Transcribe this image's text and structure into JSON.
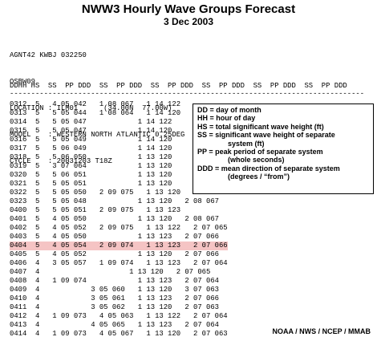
{
  "title": "NWW3 Hourly Wave Groups Forecast",
  "subtitle": "3 Dec 2003",
  "header_lines": [
    "AGNT42 KWBJ 032250",
    "OSBW09",
    "LOCATION : ILM01      (34.00N  77.00W)",
    "MODEL    : WESTERN NORTH ATLANTIC 0.25DEG",
    "CYCLE    : 20031203 T18Z"
  ],
  "column_header": "DDHH HS  SS  PP DDD  SS  PP DDD  SS  PP DDD  SS  PP DDD  SS  PP DDD  SS  PP DDD",
  "rule": "-----------------------------------------------------------------------------------",
  "rows": [
    "0312  5   4 05 042   1 08 067   1 14 122",
    "0313  5   5 05 044   1 08 064   1 14 120",
    "0314  5   5 05 047            1 14 122",
    "0315  5   5 05 047            1 14 120",
    "0316  5   5 05 049            1 14 120",
    "0317  5   5 06 049            1 14 120",
    "0318  5   5 06 050            1 13 120",
    "0319  5   3 07 064            1 13 120",
    "0320  5   5 06 051            1 13 120",
    "0321  5   5 05 051            1 13 120",
    "0322  5   5 05 050   2 09 075   1 13 120",
    "0323  5   5 05 048            1 13 120   2 08 067",
    "0400  5   5 05 051   2 09 075   1 13 123",
    "0401  5   4 05 050            1 13 120   2 08 067",
    "0402  5   4 05 052   2 09 075   1 13 122   2 07 065",
    "0403  5   4 05 050            1 13 123   2 07 066",
    "0404  5   4 05 054   2 09 074   1 13 123   2 07 066",
    "0405  5   4 05 052            1 13 120   2 07 066",
    "0406  4   3 05 057   1 09 074   1 13 123   2 07 064",
    "0407  4                     1 13 120   2 07 065",
    "0408  4   1 09 074            1 13 123   2 07 064",
    "0409  4            3 05 060   1 13 120   3 07 063",
    "0410  4            3 05 061   1 13 123   2 07 066",
    "0411  4            3 05 062   1 13 120   2 07 063",
    "0412  4   1 09 073   4 05 063   1 13 122   2 07 064",
    "0413  4            4 05 065   1 13 123   2 07 064",
    "0414  4   1 09 073   4 05 067   1 13 120   2 07 063"
  ],
  "highlight_row_index": 16,
  "highlight_color": "#f5c4c4",
  "legend": [
    {
      "line": "DD = day of month",
      "cont": ""
    },
    {
      "line": "HH = hour of day",
      "cont": ""
    },
    {
      "line": "HS = total significant wave height (ft)",
      "cont": ""
    },
    {
      "line": "SS = significant wave height of separate",
      "cont": "system (ft)"
    },
    {
      "line": "PP = peak period of separate system",
      "cont": "(whole seconds)"
    },
    {
      "line": "DDD = mean direction of separate system",
      "cont": "(degrees / “from”)"
    }
  ],
  "credit": "NOAA / NWS / NCEP / MMAB"
}
